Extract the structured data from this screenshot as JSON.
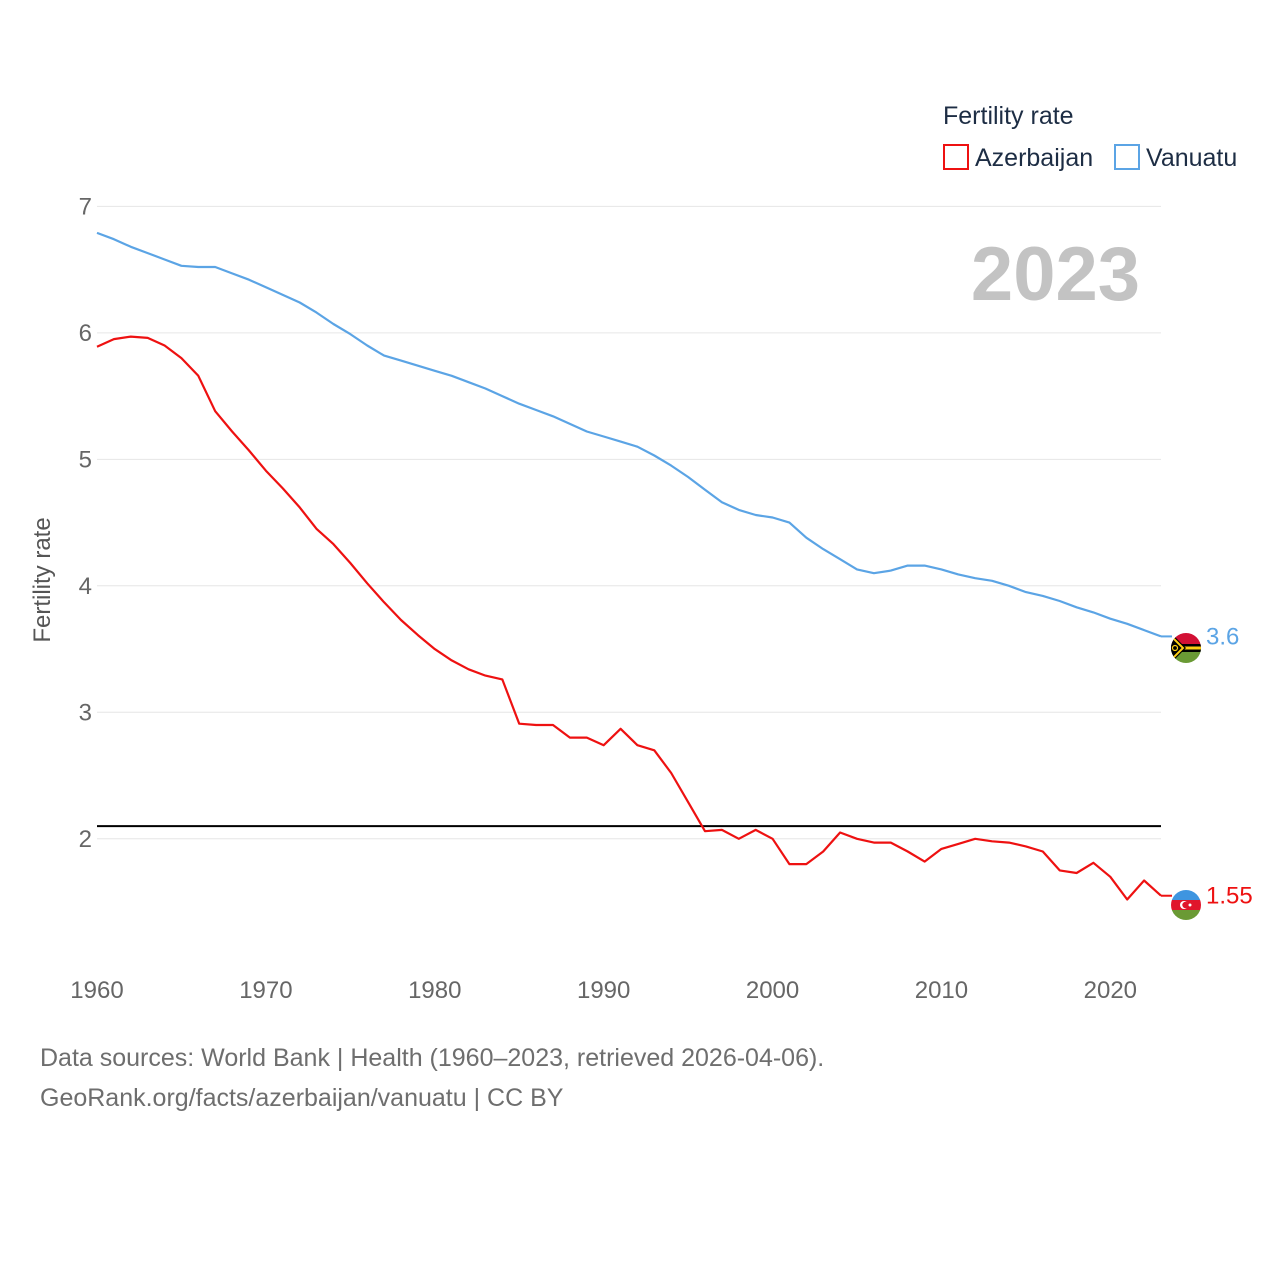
{
  "chart_data": {
    "type": "line",
    "title": "Fertility rate",
    "xlabel": "",
    "ylabel": "Fertility rate",
    "year_label": "2023",
    "xlim": [
      1960,
      2023
    ],
    "ylim": [
      1.2,
      7.05
    ],
    "x_ticks": [
      "1960",
      "1970",
      "1980",
      "1990",
      "2000",
      "2010",
      "2020"
    ],
    "y_ticks": [
      "2",
      "3",
      "4",
      "5",
      "6",
      "7"
    ],
    "reference_line": {
      "value": 2.1,
      "color": "#000000"
    },
    "x": [
      1960,
      1961,
      1962,
      1963,
      1964,
      1965,
      1966,
      1967,
      1968,
      1969,
      1970,
      1971,
      1972,
      1973,
      1974,
      1975,
      1976,
      1977,
      1978,
      1979,
      1980,
      1981,
      1982,
      1983,
      1984,
      1985,
      1986,
      1987,
      1988,
      1989,
      1990,
      1991,
      1992,
      1993,
      1994,
      1995,
      1996,
      1997,
      1998,
      1999,
      2000,
      2001,
      2002,
      2003,
      2004,
      2005,
      2006,
      2007,
      2008,
      2009,
      2010,
      2011,
      2012,
      2013,
      2014,
      2015,
      2016,
      2017,
      2018,
      2019,
      2020,
      2021,
      2022,
      2023
    ],
    "series": [
      {
        "name": "Azerbaijan",
        "color": "#ee1111",
        "end_label": "1.55",
        "values": [
          5.89,
          5.95,
          5.97,
          5.96,
          5.9,
          5.8,
          5.66,
          5.38,
          5.22,
          5.07,
          4.91,
          4.77,
          4.62,
          4.45,
          4.33,
          4.18,
          4.02,
          3.87,
          3.73,
          3.61,
          3.5,
          3.41,
          3.34,
          3.29,
          3.26,
          2.91,
          2.9,
          2.9,
          2.8,
          2.8,
          2.74,
          2.87,
          2.74,
          2.7,
          2.52,
          2.29,
          2.06,
          2.07,
          2.0,
          2.07,
          2.0,
          1.8,
          1.8,
          1.9,
          2.05,
          2.0,
          1.97,
          1.97,
          1.9,
          1.82,
          1.92,
          1.96,
          2.0,
          1.98,
          1.97,
          1.94,
          1.9,
          1.75,
          1.73,
          1.81,
          1.7,
          1.52,
          1.67,
          1.55
        ]
      },
      {
        "name": "Vanuatu",
        "color": "#5ba4e5",
        "end_label": "3.6",
        "values": [
          6.79,
          6.74,
          6.68,
          6.63,
          6.58,
          6.53,
          6.52,
          6.52,
          6.47,
          6.42,
          6.36,
          6.3,
          6.24,
          6.16,
          6.07,
          5.99,
          5.9,
          5.82,
          5.78,
          5.74,
          5.7,
          5.66,
          5.61,
          5.56,
          5.5,
          5.44,
          5.39,
          5.34,
          5.28,
          5.22,
          5.18,
          5.14,
          5.1,
          5.03,
          4.95,
          4.86,
          4.76,
          4.66,
          4.6,
          4.56,
          4.54,
          4.5,
          4.38,
          4.29,
          4.21,
          4.13,
          4.1,
          4.12,
          4.16,
          4.16,
          4.13,
          4.09,
          4.06,
          4.04,
          4.0,
          3.95,
          3.92,
          3.88,
          3.83,
          3.79,
          3.74,
          3.7,
          3.65,
          3.6
        ]
      }
    ]
  },
  "legend": {
    "title": "Fertility rate",
    "items": [
      "Azerbaijan",
      "Vanuatu"
    ]
  },
  "source": {
    "line1": "Data sources: World Bank | Health (1960–2023, retrieved 2026-04-06).",
    "line2": "GeoRank.org/facts/azerbaijan/vanuatu | CC BY"
  },
  "flags": [
    {
      "country": "Vanuatu",
      "icon": "vanuatu-flag-icon",
      "colors": [
        "#d21034",
        "#009543",
        "#000000",
        "#fdce12"
      ]
    },
    {
      "country": "Azerbaijan",
      "icon": "azerbaijan-flag-icon",
      "colors": [
        "#3f9c35",
        "#ed2939",
        "#00b9e4",
        "#ffffff"
      ]
    }
  ]
}
